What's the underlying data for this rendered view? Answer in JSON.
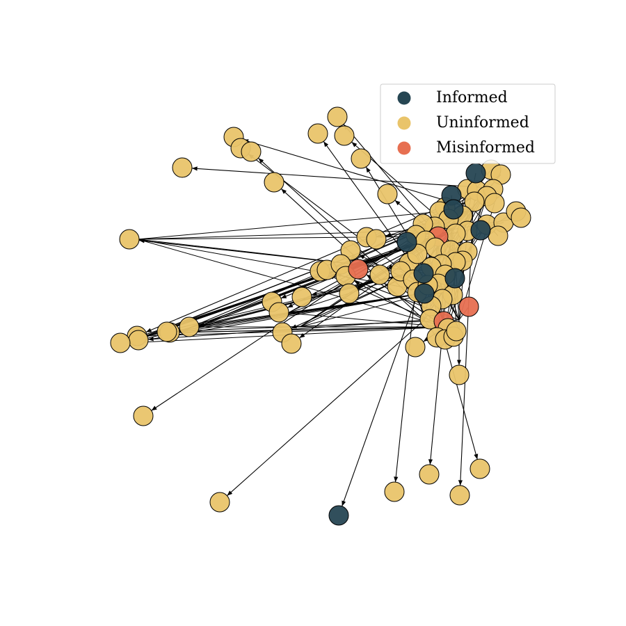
{
  "legend": {
    "items": [
      {
        "label": "Informed",
        "color": "#264653"
      },
      {
        "label": "Uninformed",
        "color": "#e9c46a"
      },
      {
        "label": "Misinformed",
        "color": "#e76f51"
      }
    ]
  }
}
